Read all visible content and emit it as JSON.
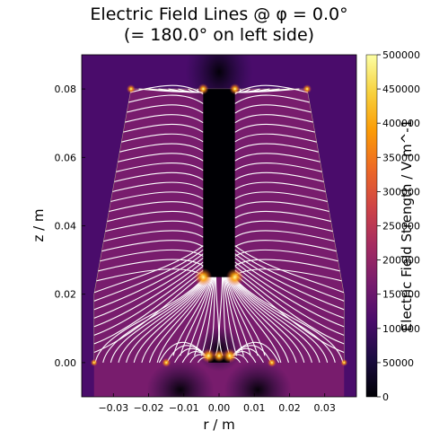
{
  "chart_data": {
    "type": "heatmap",
    "title_line1": "Electric Field Lines @ φ = 0.0°",
    "title_line2": "(= 180.0° on left side)",
    "xlabel": "r / m",
    "ylabel": "z / m",
    "colorbar_label": "Electric Field Strength / V m^-1",
    "xlim": [
      -0.039,
      0.039
    ],
    "ylim": [
      -0.01,
      0.09
    ],
    "x_ticks": [
      -0.03,
      -0.02,
      -0.01,
      0.0,
      0.01,
      0.02,
      0.03
    ],
    "x_tick_labels": [
      "−0.03",
      "−0.02",
      "−0.01",
      "0.00",
      "0.01",
      "0.02",
      "0.03"
    ],
    "y_ticks": [
      0.0,
      0.02,
      0.04,
      0.06,
      0.08
    ],
    "y_tick_labels": [
      "0.00",
      "0.02",
      "0.04",
      "0.06",
      "0.08"
    ],
    "colorbar_range": [
      0,
      500000
    ],
    "colorbar_ticks": [
      0,
      50000,
      100000,
      150000,
      200000,
      250000,
      300000,
      350000,
      400000,
      450000,
      500000
    ],
    "colorbar_tick_labels": [
      "0",
      "50000",
      "100000",
      "150000",
      "200000",
      "250000",
      "300000",
      "350000",
      "400000",
      "450000",
      "500000"
    ],
    "colormap": "inferno",
    "colormap_stops": [
      "#000004",
      "#1b0c41",
      "#4a0c6b",
      "#781c6d",
      "#a52c60",
      "#cf4446",
      "#ed6925",
      "#fb9b06",
      "#f7d13d",
      "#fcffa4"
    ],
    "field_line_color": "#ffffff",
    "geometry": {
      "outer_boundary": [
        [
          -0.0355,
          0.0
        ],
        [
          -0.0355,
          0.02
        ],
        [
          -0.025,
          0.08
        ],
        [
          0.025,
          0.08
        ],
        [
          0.0355,
          0.02
        ],
        [
          0.0355,
          0.0
        ]
      ],
      "inner_electrode": {
        "r_min": -0.0045,
        "r_max": 0.0045,
        "z_min": 0.025,
        "z_max": 0.08
      },
      "base_electrode": {
        "r_min": -0.003,
        "r_max": 0.003,
        "z_min": 0.0,
        "z_max": 0.002
      },
      "floor_gap_edges": [
        -0.015,
        0.015
      ]
    }
  }
}
